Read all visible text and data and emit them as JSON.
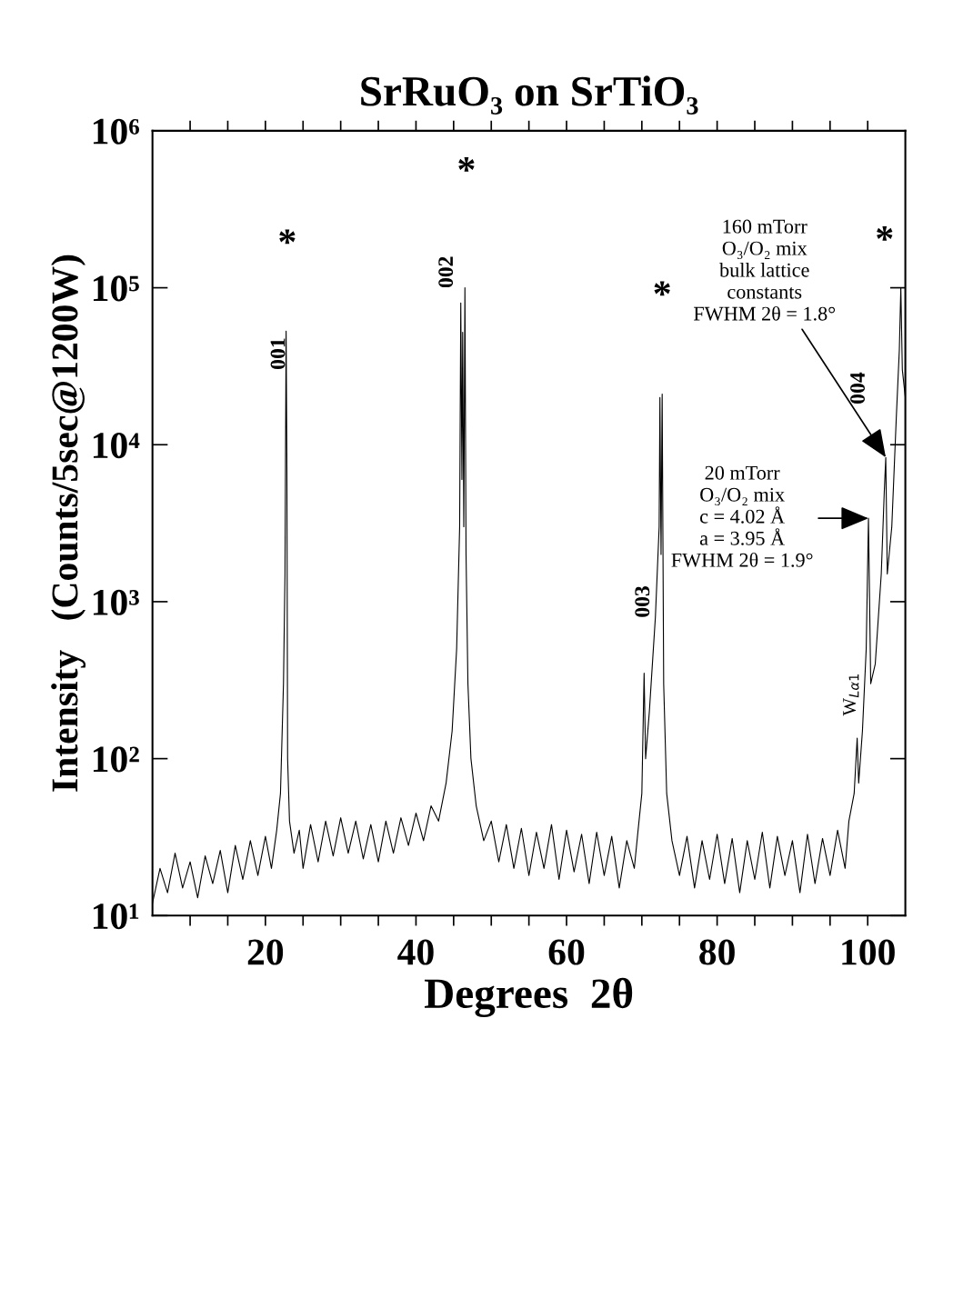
{
  "chart_data": {
    "type": "line",
    "title": "SrRuO₃ on SrTiO₃",
    "xlabel": "Degrees  2θ",
    "ylabel": "Intensity   (Counts/5sec@1200W)",
    "log": true,
    "marker": "none",
    "line_style": "solid",
    "xlim": [
      5,
      105
    ],
    "ylim": [
      10,
      1000000
    ],
    "xticks": [
      {
        "value": 10,
        "label": null
      },
      {
        "value": 15,
        "label": null
      },
      20,
      {
        "value": 25,
        "label": null
      },
      {
        "value": 30,
        "label": null
      },
      {
        "value": 35,
        "label": null
      },
      40,
      {
        "value": 45,
        "label": null
      },
      {
        "value": 50,
        "label": null
      },
      {
        "value": 55,
        "label": null
      },
      60,
      {
        "value": 65,
        "label": null
      },
      {
        "value": 70,
        "label": null
      },
      {
        "value": 75,
        "label": null
      },
      80,
      {
        "value": 85,
        "label": null
      },
      {
        "value": 90,
        "label": null
      },
      {
        "value": 95,
        "label": null
      },
      100
    ],
    "yticks": [
      {
        "value": 10,
        "label": "10¹"
      },
      {
        "value": 100,
        "label": "10²"
      },
      {
        "value": 1000,
        "label": "10³"
      },
      {
        "value": 10000,
        "label": "10⁴"
      },
      {
        "value": 100000,
        "label": "10⁵"
      },
      {
        "value": 1000000,
        "label": "10⁶"
      }
    ],
    "series": [
      {
        "color": "#000000",
        "x": [
          5,
          6,
          7,
          8,
          9,
          10,
          11,
          12,
          13,
          14,
          15,
          16,
          17,
          18,
          19,
          20,
          20.8,
          21.5,
          22.0,
          22.4,
          22.6,
          22.75,
          22.85,
          22.95,
          23.2,
          23.8,
          24.5,
          25,
          26,
          27,
          28,
          29,
          30,
          31,
          32,
          33,
          34,
          35,
          36,
          37,
          38,
          39,
          40,
          41,
          42,
          43,
          44,
          44.8,
          45.4,
          45.8,
          45.95,
          46.1,
          46.2,
          46.35,
          46.5,
          46.65,
          46.9,
          47.3,
          48,
          49,
          50,
          51,
          52,
          53,
          54,
          55,
          56,
          57,
          58,
          59,
          60,
          61,
          62,
          63,
          64,
          65,
          66,
          67,
          68,
          69,
          69.5,
          70.0,
          70.3,
          70.5,
          71,
          71.8,
          72.3,
          72.4,
          72.55,
          72.7,
          72.9,
          73.3,
          74,
          75,
          76,
          77,
          78,
          79,
          80,
          81,
          82,
          83,
          84,
          85,
          86,
          87,
          88,
          89,
          90,
          91,
          92,
          93,
          94,
          95,
          96,
          97,
          97.5,
          98.2,
          98.6,
          98.8,
          99.3,
          99.8,
          100.1,
          100.4,
          101,
          101.8,
          102.2,
          102.4,
          102.6,
          103.2,
          103.8,
          104.2,
          104.4,
          104.6,
          105
        ],
        "values": [
          12,
          20,
          14,
          25,
          15,
          22,
          13,
          24,
          16,
          26,
          14,
          28,
          17,
          30,
          18,
          32,
          20,
          35,
          60,
          300,
          1500,
          53000,
          8000,
          100,
          40,
          25,
          35,
          20,
          38,
          22,
          40,
          24,
          42,
          25,
          40,
          23,
          38,
          22,
          40,
          25,
          42,
          28,
          45,
          30,
          50,
          40,
          70,
          150,
          500,
          3000,
          80000,
          6000,
          52000,
          3000,
          100000,
          2000,
          300,
          100,
          50,
          30,
          40,
          22,
          38,
          20,
          36,
          18,
          34,
          20,
          38,
          17,
          35,
          19,
          33,
          16,
          34,
          18,
          32,
          15,
          30,
          20,
          35,
          60,
          350,
          100,
          200,
          800,
          3000,
          20000,
          2000,
          21000,
          300,
          60,
          30,
          18,
          32,
          15,
          30,
          17,
          33,
          16,
          31,
          14,
          30,
          17,
          34,
          15,
          32,
          18,
          30,
          14,
          33,
          16,
          31,
          18,
          35,
          20,
          40,
          60,
          135,
          70,
          150,
          500,
          3400,
          300,
          400,
          1500,
          5000,
          8300,
          1500,
          3000,
          15000,
          40000,
          100000,
          30000,
          20000
        ]
      }
    ],
    "annotations": [
      "*",
      "*",
      "*",
      "*",
      "001",
      "002",
      "003",
      "004",
      "W$_{Lα1}$",
      {
        "text": "160 mTorr\nO₃/O₂ mix\nbulk lattice\nconstants\nFWHM 2θ = 1.8°",
        "x": 102.4,
        "y": 8300
      },
      {
        "text": "20 mTorr\nO₃/O₂ mix\nc = 4.02 Å\na = 3.95 Å\nFWHM 2θ = 1.9°",
        "x": 100.1,
        "y": 3400
      }
    ]
  }
}
